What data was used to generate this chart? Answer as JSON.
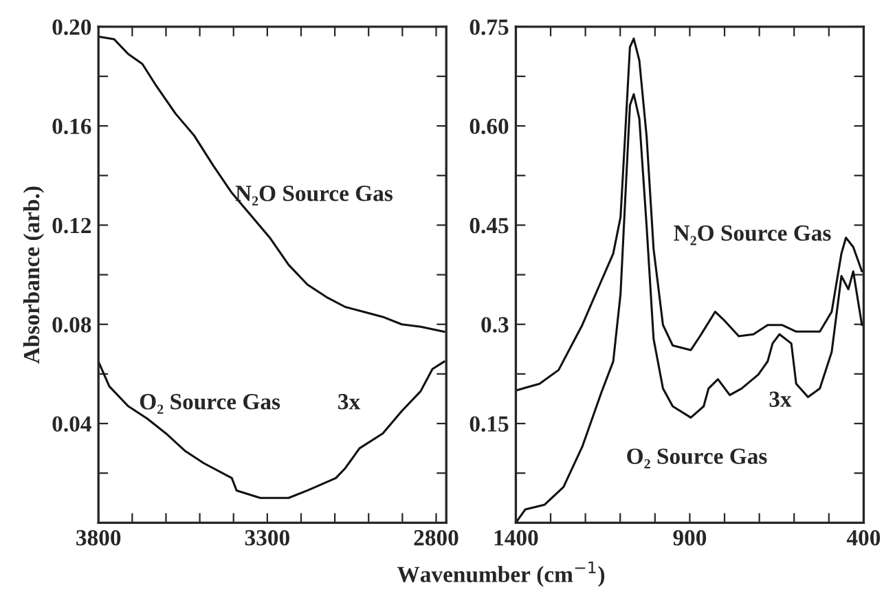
{
  "chart_data": [
    {
      "type": "line",
      "ylabel": "Absorbance (arb.)",
      "xlabel": "Wavenumber (cm$^{−1}$)",
      "xlim": [
        3800,
        2770
      ],
      "ylim": [
        0,
        0.2
      ],
      "xticks": [
        3800,
        {
          "value": 3700,
          "label": null
        },
        {
          "value": 3600,
          "label": null
        },
        {
          "value": 3500,
          "label": null
        },
        {
          "value": 3400,
          "label": null
        },
        3300,
        {
          "value": 3200,
          "label": null
        },
        {
          "value": 3100,
          "label": null
        },
        {
          "value": 3000,
          "label": null
        },
        {
          "value": 2900,
          "label": null
        },
        2800
      ],
      "yticks": [
        {
          "value": 0.02,
          "label": null
        },
        0.04,
        {
          "value": 0.06,
          "label": null
        },
        0.08,
        {
          "value": 0.1,
          "label": null
        },
        0.12,
        {
          "value": 0.14,
          "label": null
        },
        0.16,
        {
          "value": 0.18,
          "label": null
        },
        {
          "value": 0.2,
          "label": "0.20"
        }
      ],
      "grid": false,
      "legend": false,
      "marker": "none",
      "line_style": "solid",
      "series": [
        {
          "color": "#111111",
          "x": [
            3800,
            3754,
            3712,
            3670,
            3628,
            3572,
            3516,
            3460,
            3405,
            3349,
            3293,
            3237,
            3181,
            3125,
            3069,
            3013,
            2958,
            2902,
            2846,
            2776
          ],
          "values": [
            0.196,
            0.195,
            0.189,
            0.185,
            0.176,
            0.165,
            0.156,
            0.144,
            0.133,
            0.124,
            0.115,
            0.104,
            0.096,
            0.091,
            0.087,
            0.085,
            0.083,
            0.08,
            0.079,
            0.077
          ]
        },
        {
          "color": "#111111",
          "x": [
            3800,
            3768,
            3712,
            3656,
            3600,
            3544,
            3488,
            3405,
            3391,
            3321,
            3237,
            3181,
            3097,
            3069,
            3027,
            2958,
            2902,
            2846,
            2811,
            2776
          ],
          "values": [
            0.065,
            0.055,
            0.047,
            0.042,
            0.036,
            0.029,
            0.024,
            0.018,
            0.013,
            0.01,
            0.01,
            0.013,
            0.018,
            0.022,
            0.03,
            0.036,
            0.045,
            0.053,
            0.062,
            0.065
          ]
        }
      ],
      "annotations": [
        "N₂O Source Gas",
        "O₂ Source Gas",
        "3x"
      ]
    },
    {
      "type": "line",
      "xlim": [
        1400,
        400
      ],
      "ylim": [
        0,
        0.75
      ],
      "xticks": [
        1400,
        {
          "value": 1300,
          "label": null
        },
        {
          "value": 1200,
          "label": null
        },
        {
          "value": 1100,
          "label": null
        },
        {
          "value": 1000,
          "label": null
        },
        900,
        {
          "value": 800,
          "label": null
        },
        {
          "value": 700,
          "label": null
        },
        {
          "value": 600,
          "label": null
        },
        {
          "value": 500,
          "label": null
        },
        400
      ],
      "yticks": [
        {
          "value": 0.075,
          "label": null
        },
        0.15,
        {
          "value": 0.225,
          "label": null
        },
        0.3,
        {
          "value": 0.375,
          "label": null
        },
        0.45,
        {
          "value": 0.525,
          "label": null
        },
        {
          "value": 0.6,
          "label": "0.60"
        },
        {
          "value": 0.675,
          "label": null
        },
        0.75
      ],
      "grid": false,
      "legend": false,
      "marker": "none",
      "line_style": "solid",
      "series": [
        {
          "color": "#111111",
          "x": [
            1400,
            1332,
            1277,
            1209,
            1154,
            1120,
            1099,
            1086,
            1072,
            1061,
            1045,
            1024,
            1004,
            977,
            949,
            897,
            867,
            827,
            799,
            759,
            717,
            676,
            635,
            594,
            526,
            492,
            464,
            451,
            430,
            405
          ],
          "values": [
            0.2,
            0.21,
            0.231,
            0.299,
            0.366,
            0.407,
            0.462,
            0.584,
            0.719,
            0.732,
            0.699,
            0.584,
            0.414,
            0.299,
            0.268,
            0.261,
            0.285,
            0.319,
            0.305,
            0.282,
            0.285,
            0.299,
            0.299,
            0.289,
            0.289,
            0.319,
            0.407,
            0.431,
            0.417,
            0.38
          ]
        },
        {
          "color": "#111111",
          "x": [
            1400,
            1373,
            1318,
            1263,
            1209,
            1154,
            1120,
            1099,
            1083,
            1072,
            1061,
            1045,
            1024,
            1004,
            977,
            949,
            897,
            860,
            846,
            819,
            785,
            751,
            703,
            676,
            662,
            642,
            608,
            594,
            560,
            526,
            492,
            464,
            444,
            430,
            405
          ],
          "values": [
            0.0,
            0.02,
            0.027,
            0.054,
            0.115,
            0.197,
            0.244,
            0.346,
            0.516,
            0.631,
            0.648,
            0.611,
            0.448,
            0.278,
            0.203,
            0.176,
            0.159,
            0.176,
            0.203,
            0.217,
            0.193,
            0.203,
            0.224,
            0.244,
            0.271,
            0.285,
            0.271,
            0.21,
            0.19,
            0.203,
            0.258,
            0.373,
            0.353,
            0.38,
            0.299
          ]
        }
      ],
      "annotations": [
        "N₂O Source Gas",
        "O₂ Source Gas",
        "3x"
      ]
    }
  ]
}
